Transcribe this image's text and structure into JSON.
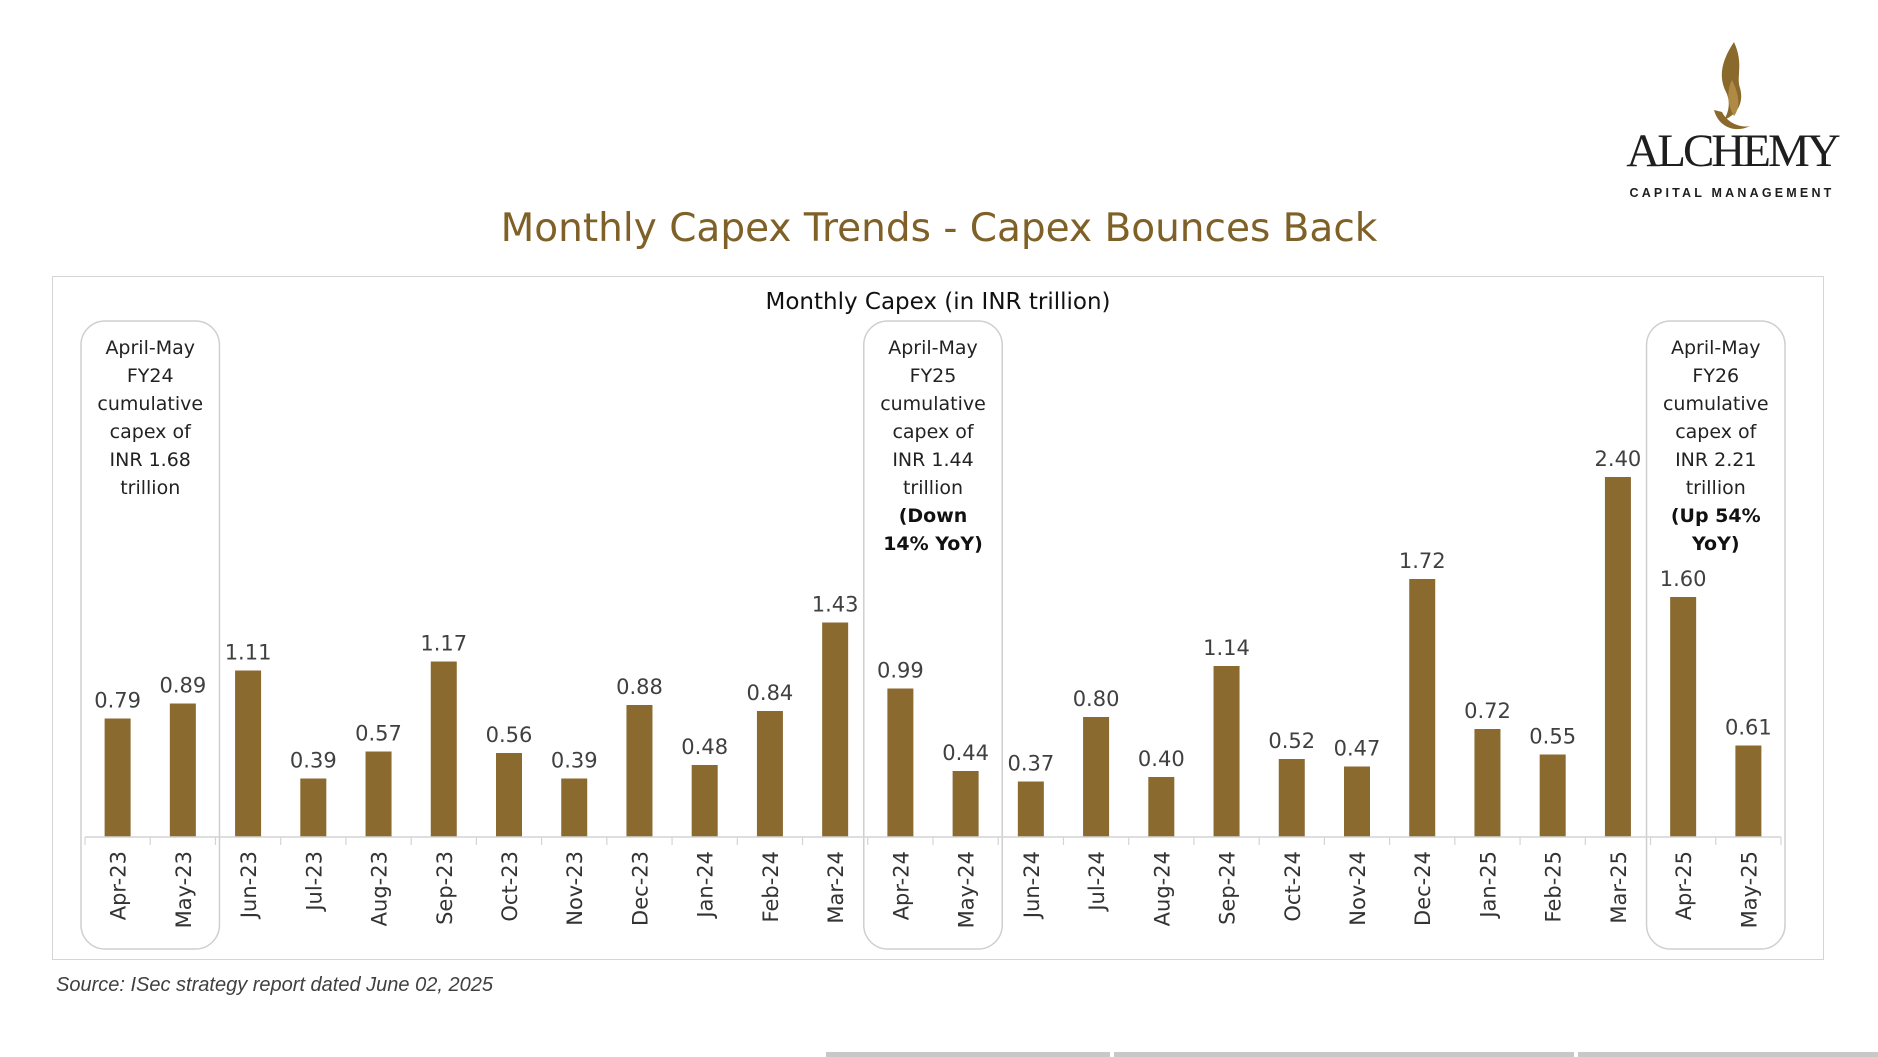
{
  "logo": {
    "brand": "ALCHEMY",
    "tagline": "CAPITAL MANAGEMENT",
    "accent": "#8a6a2c"
  },
  "header": {
    "title": "Monthly Capex Trends - Capex Bounces Back"
  },
  "footer": {
    "source": "Source: ISec strategy report dated June 02, 2025"
  },
  "chart_data": {
    "type": "bar",
    "title": "Monthly Capex (in INR trillion)",
    "xlabel": "",
    "ylabel": "",
    "ylim": [
      0,
      3.2
    ],
    "bar_color": "#8b6a30",
    "categories": [
      "Apr-23",
      "May-23",
      "Jun-23",
      "Jul-23",
      "Aug-23",
      "Sep-23",
      "Oct-23",
      "Nov-23",
      "Dec-23",
      "Jan-24",
      "Feb-24",
      "Mar-24",
      "Apr-24",
      "May-24",
      "Jun-24",
      "Jul-24",
      "Aug-24",
      "Sep-24",
      "Oct-24",
      "Nov-24",
      "Dec-24",
      "Jan-25",
      "Feb-25",
      "Mar-25",
      "Apr-25",
      "May-25"
    ],
    "values": [
      0.79,
      0.89,
      1.11,
      0.39,
      0.57,
      1.17,
      0.56,
      0.39,
      0.88,
      0.48,
      0.84,
      1.43,
      0.99,
      0.44,
      0.37,
      0.8,
      0.4,
      1.14,
      0.52,
      0.47,
      1.72,
      0.72,
      0.55,
      2.4,
      1.6,
      0.61
    ],
    "value_labels": [
      "0.79",
      "0.89",
      "1.11",
      "0.39",
      "0.57",
      "1.17",
      "0.56",
      "0.39",
      "0.88",
      "0.48",
      "0.84",
      "1.43",
      "0.99",
      "0.44",
      "0.37",
      "0.80",
      "0.40",
      "1.14",
      "0.52",
      "0.47",
      "1.72",
      "0.72",
      "0.55",
      "2.40",
      "1.60",
      "0.61"
    ],
    "annotations": [
      {
        "span": [
          0,
          1
        ],
        "lines": [
          "April-May",
          "FY24",
          "cumulative",
          "capex of",
          "INR 1.68",
          "trillion"
        ],
        "bold_lines": []
      },
      {
        "span": [
          12,
          13
        ],
        "lines": [
          "April-May",
          "FY25",
          "cumulative",
          "capex of",
          "INR 1.44",
          "trillion"
        ],
        "bold_lines": [
          "(Down",
          "14% YoY)"
        ]
      },
      {
        "span": [
          24,
          25
        ],
        "lines": [
          "April-May",
          "FY26",
          "cumulative",
          "capex of",
          "INR 2.21",
          "trillion"
        ],
        "bold_lines": [
          "(Up 54%",
          "YoY)"
        ]
      }
    ]
  }
}
